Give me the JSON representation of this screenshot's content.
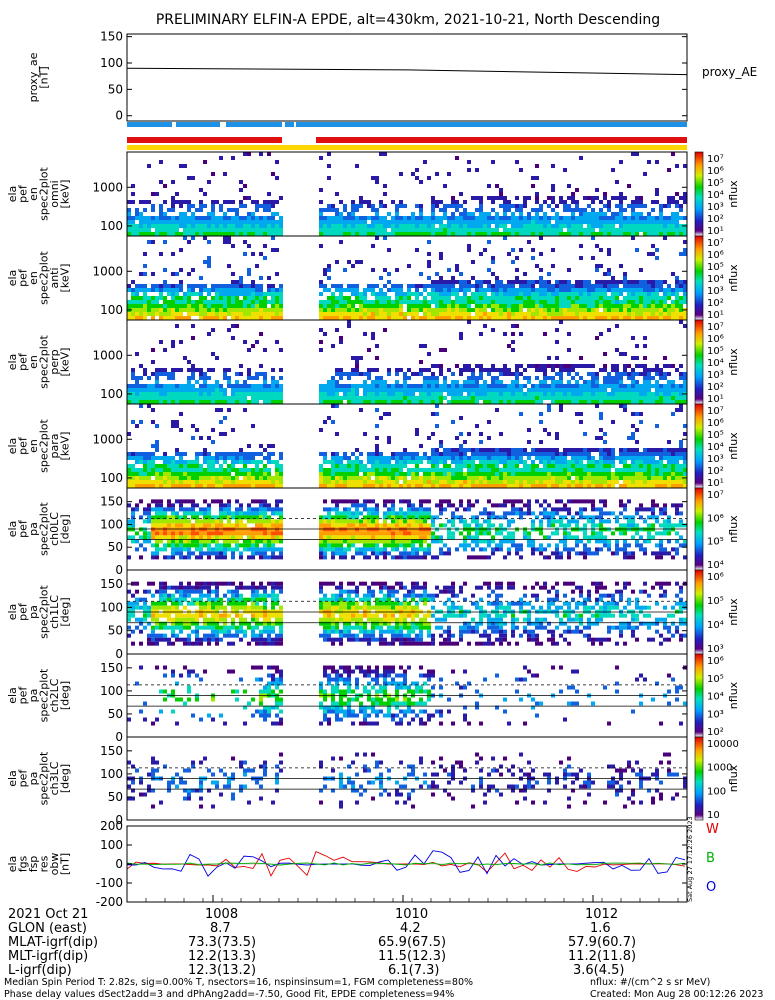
{
  "title": "PRELIMINARY ELFIN-A EPDE, alt=430km, 2021-10-21, North Descending",
  "chart_data": [
    {
      "type": "line",
      "panel": "proxy_ae",
      "ylabel_lines": [
        "proxy_ae",
        "[nT]"
      ],
      "legend_label": "proxy_AE",
      "y_ticks": [
        "150",
        "100",
        "50",
        "0"
      ],
      "ylim": [
        -10,
        155
      ],
      "x": [
        "1007.0",
        "1010.0",
        "1013.0"
      ],
      "values": [
        90,
        87,
        78
      ]
    },
    {
      "type": "heatmap",
      "panel": "ela_pef_en_spec2plot_omni",
      "ylabel_lines": [
        "ela",
        "pef",
        "en",
        "spec2plot",
        "omni",
        "[keV]"
      ],
      "y_ticks": [
        "1000",
        "100"
      ],
      "yscale": "log",
      "colorbar": {
        "label": "nflux",
        "ticks": [
          "10⁷",
          "10⁶",
          "10⁵",
          "10⁴",
          "10³",
          "10²",
          "10¹"
        ]
      }
    },
    {
      "type": "heatmap",
      "panel": "ela_pef_en_spec2plot_anti",
      "ylabel_lines": [
        "ela",
        "pef",
        "en",
        "spec2plot",
        "anti",
        "[keV]"
      ],
      "y_ticks": [
        "1000",
        "100"
      ],
      "yscale": "log",
      "colorbar": {
        "label": "nflux",
        "ticks": [
          "10⁷",
          "10⁶",
          "10⁵",
          "10⁴",
          "10³",
          "10²",
          "10¹"
        ]
      }
    },
    {
      "type": "heatmap",
      "panel": "ela_pef_en_spec2plot_perp",
      "ylabel_lines": [
        "ela",
        "pef",
        "en",
        "spec2plot",
        "perp",
        "[keV]"
      ],
      "y_ticks": [
        "1000",
        "100"
      ],
      "yscale": "log",
      "colorbar": {
        "label": "nflux",
        "ticks": [
          "10⁷",
          "10⁶",
          "10⁵",
          "10⁴",
          "10³",
          "10²",
          "10¹"
        ]
      }
    },
    {
      "type": "heatmap",
      "panel": "ela_pef_en_spec2plot_para",
      "ylabel_lines": [
        "ela",
        "pef",
        "en",
        "spec2plot",
        "para",
        "[keV]"
      ],
      "y_ticks": [
        "1000",
        "100"
      ],
      "yscale": "log",
      "colorbar": {
        "label": "nflux",
        "ticks": [
          "10⁷",
          "10⁶",
          "10⁵",
          "10⁴",
          "10³",
          "10²",
          "10¹"
        ]
      }
    },
    {
      "type": "heatmap",
      "panel": "ela_pef_pa_spec2plot_ch0LC",
      "ylabel_lines": [
        "ela",
        "pef",
        "pa",
        "spec2plot",
        "ch0LC",
        "[deg]"
      ],
      "y_ticks": [
        "150",
        "100",
        "50",
        "0"
      ],
      "ylim": [
        0,
        180
      ],
      "colorbar": {
        "label": "nflux",
        "ticks": [
          "10⁷",
          "10⁶",
          "10⁵",
          "10⁴"
        ]
      }
    },
    {
      "type": "heatmap",
      "panel": "ela_pef_pa_spec2plot_ch1LC",
      "ylabel_lines": [
        "ela",
        "pef",
        "pa",
        "spec2plot",
        "ch1LC",
        "[deg]"
      ],
      "y_ticks": [
        "150",
        "100",
        "50",
        "0"
      ],
      "ylim": [
        0,
        180
      ],
      "colorbar": {
        "label": "nflux",
        "ticks": [
          "10⁶",
          "10⁵",
          "10⁴",
          "10³"
        ]
      }
    },
    {
      "type": "heatmap",
      "panel": "ela_pef_pa_spec2plot_ch2LC",
      "ylabel_lines": [
        "ela",
        "pef",
        "pa",
        "spec2plot",
        "ch2LC",
        "[deg]"
      ],
      "y_ticks": [
        "150",
        "100",
        "50",
        "0"
      ],
      "ylim": [
        0,
        180
      ],
      "colorbar": {
        "label": "nflux",
        "ticks": [
          "10⁶",
          "10⁵",
          "10⁴",
          "10³",
          "10²"
        ]
      }
    },
    {
      "type": "heatmap",
      "panel": "ela_pef_pa_spec2plot_ch3LC",
      "ylabel_lines": [
        "ela",
        "pef",
        "pa",
        "spec2plot",
        "ch3LC",
        "[deg]"
      ],
      "y_ticks": [
        "150",
        "100",
        "50",
        "0"
      ],
      "ylim": [
        0,
        180
      ],
      "colorbar": {
        "label": "nflux",
        "ticks": [
          "10000",
          "1000",
          "100",
          "10"
        ]
      }
    },
    {
      "type": "line",
      "panel": "ela_fgs_fsp_res_obw",
      "ylabel_lines": [
        "ela",
        "fgs",
        "fsp",
        "res",
        "obw",
        "[nT]"
      ],
      "y_ticks": [
        "200",
        "100",
        "0",
        "-100",
        "-200"
      ],
      "ylim": [
        -200,
        200
      ],
      "legend": [
        {
          "label": "W",
          "color": "#e00000"
        },
        {
          "label": "B",
          "color": "#00b000"
        },
        {
          "label": "O",
          "color": "#0000e0"
        }
      ]
    }
  ],
  "x_axis": {
    "row_labels": [
      "2021 Oct 21",
      "GLON (east)",
      "MLAT-igrf(dip)",
      "MLT-igrf(dip)",
      "L-igrf(dip)"
    ],
    "columns": [
      {
        "time": "1008",
        "glon": "8.7",
        "mlat": "73.3(73.5)",
        "mlt": "12.2(13.3)",
        "l": "12.3(13.2)"
      },
      {
        "time": "1010",
        "glon": "4.2",
        "mlat": "65.9(67.5)",
        "mlt": "11.5(12.3)",
        "l": "6.1(7.3)"
      },
      {
        "time": "1012",
        "glon": "1.6",
        "mlat": "57.9(60.7)",
        "mlt": "11.2(11.8)",
        "l": "3.6(4.5)"
      }
    ]
  },
  "footer": {
    "line1": "Median Spin Period T: 2.82s, sig=0.00% T, nsectors=16, nspinsinsum=1, FGM completeness=80%",
    "line2": "Phase delay values dSect2add=3 and dPhAng2add=-7.50, Good Fit, EPDE completeness=94%",
    "units": "nflux: #/(cm^2 s sr MeV)",
    "created": "Created: Mon Aug 28 00:12:26 2023",
    "vertical_stamp": "Sat Aug 27 17:12:26 2023"
  },
  "colors": {
    "ribbon_blue": "#1e90e6",
    "ribbon_red": "#e01010",
    "ribbon_yellow": "#ffd700"
  }
}
